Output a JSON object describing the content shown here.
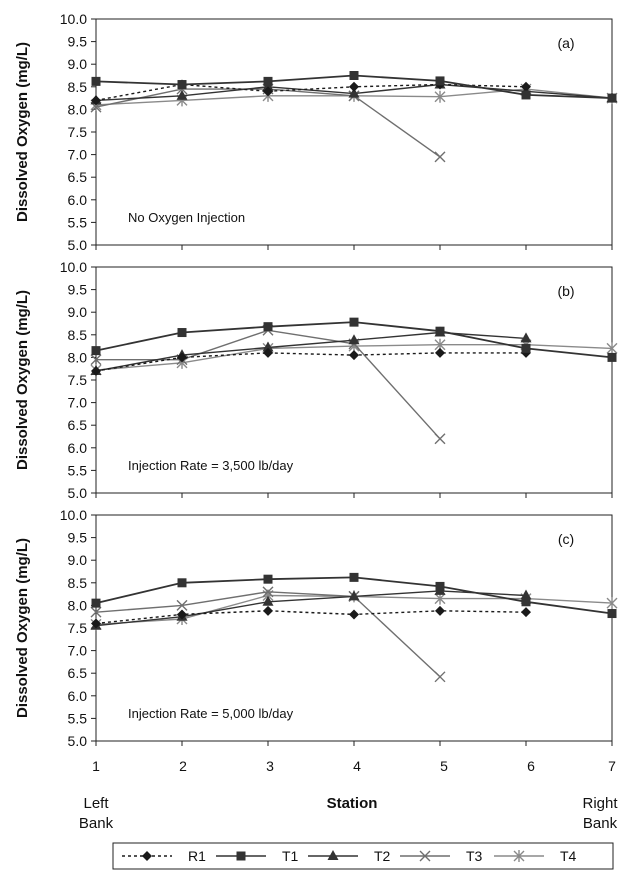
{
  "chart_data": [
    {
      "type": "line",
      "panel_label": "(a)",
      "annotation": "No Oxygen Injection",
      "ylabel": "Dissolved Oxygen (mg/L)",
      "xlabel": "",
      "x": [
        1,
        2,
        3,
        4,
        5,
        6,
        7
      ],
      "ylim": [
        5.0,
        10.0
      ],
      "yticks": [
        "5.0",
        "5.5",
        "6.0",
        "6.5",
        "7.0",
        "7.5",
        "8.0",
        "8.5",
        "9.0",
        "9.5",
        "10.0"
      ],
      "series": [
        {
          "name": "R1",
          "x": [
            1,
            2,
            3,
            4,
            5,
            6
          ],
          "values": [
            8.2,
            8.55,
            8.4,
            8.5,
            8.55,
            8.5
          ]
        },
        {
          "name": "T1",
          "x": [
            1,
            2,
            3,
            4,
            5,
            6,
            7
          ],
          "values": [
            8.62,
            8.55,
            8.62,
            8.75,
            8.63,
            8.32,
            8.25
          ]
        },
        {
          "name": "T2",
          "x": [
            1,
            2,
            3,
            4,
            5,
            6,
            7
          ],
          "values": [
            8.2,
            8.3,
            8.5,
            8.35,
            8.55,
            8.4,
            8.25
          ]
        },
        {
          "name": "T3",
          "x": [
            1,
            2,
            3,
            4,
            5
          ],
          "values": [
            8.05,
            8.45,
            8.45,
            8.3,
            6.95
          ]
        },
        {
          "name": "T4",
          "x": [
            1,
            2,
            3,
            4,
            5,
            6,
            7
          ],
          "values": [
            8.1,
            8.2,
            8.3,
            8.3,
            8.28,
            8.45,
            8.25
          ]
        }
      ]
    },
    {
      "type": "line",
      "panel_label": "(b)",
      "annotation": "Injection Rate = 3,500 lb/day",
      "ylabel": "Dissolved Oxygen (mg/L)",
      "xlabel": "",
      "x": [
        1,
        2,
        3,
        4,
        5,
        6,
        7
      ],
      "ylim": [
        5.0,
        10.0
      ],
      "yticks": [
        "5.0",
        "5.5",
        "6.0",
        "6.5",
        "7.0",
        "7.5",
        "8.0",
        "8.5",
        "9.0",
        "9.5",
        "10.0"
      ],
      "series": [
        {
          "name": "R1",
          "x": [
            1,
            2,
            3,
            4,
            5,
            6
          ],
          "values": [
            7.7,
            8.0,
            8.1,
            8.05,
            8.1,
            8.1
          ]
        },
        {
          "name": "T1",
          "x": [
            1,
            2,
            3,
            4,
            5,
            6,
            7
          ],
          "values": [
            8.15,
            8.55,
            8.68,
            8.78,
            8.58,
            8.2,
            8.0
          ]
        },
        {
          "name": "T2",
          "x": [
            1,
            2,
            3,
            4,
            5,
            6
          ],
          "values": [
            7.7,
            8.05,
            8.22,
            8.38,
            8.55,
            8.42
          ]
        },
        {
          "name": "T3",
          "x": [
            1,
            2,
            3,
            4,
            5
          ],
          "values": [
            7.95,
            7.95,
            8.6,
            8.3,
            6.2
          ]
        },
        {
          "name": "T4",
          "x": [
            1,
            2,
            3,
            4,
            5,
            6,
            7
          ],
          "values": [
            7.72,
            7.88,
            8.2,
            8.25,
            8.28,
            8.28,
            8.2
          ]
        }
      ]
    },
    {
      "type": "line",
      "panel_label": "(c)",
      "annotation": "Injection Rate = 5,000 lb/day",
      "ylabel": "Dissolved Oxygen (mg/L)",
      "xlabel": "",
      "x": [
        1,
        2,
        3,
        4,
        5,
        6,
        7
      ],
      "ylim": [
        5.0,
        10.0
      ],
      "yticks": [
        "5.0",
        "5.5",
        "6.0",
        "6.5",
        "7.0",
        "7.5",
        "8.0",
        "8.5",
        "9.0",
        "9.5",
        "10.0"
      ],
      "series": [
        {
          "name": "R1",
          "x": [
            1,
            2,
            3,
            4,
            5,
            6
          ],
          "values": [
            7.6,
            7.8,
            7.88,
            7.8,
            7.88,
            7.85
          ]
        },
        {
          "name": "T1",
          "x": [
            1,
            2,
            3,
            4,
            5,
            6,
            7
          ],
          "values": [
            8.05,
            8.5,
            8.58,
            8.62,
            8.42,
            8.08,
            7.82
          ]
        },
        {
          "name": "T2",
          "x": [
            1,
            2,
            3,
            4,
            5,
            6
          ],
          "values": [
            7.55,
            7.75,
            8.08,
            8.2,
            8.32,
            8.22
          ]
        },
        {
          "name": "T3",
          "x": [
            1,
            2,
            3,
            4,
            5
          ],
          "values": [
            7.85,
            8.0,
            8.3,
            8.2,
            6.42
          ]
        },
        {
          "name": "T4",
          "x": [
            1,
            2,
            3,
            4,
            5,
            6,
            7
          ],
          "values": [
            7.58,
            7.7,
            8.22,
            8.2,
            8.15,
            8.15,
            8.05
          ]
        }
      ]
    }
  ],
  "xaxis": {
    "tick_labels": [
      "1",
      "2",
      "3",
      "4",
      "5",
      "6",
      "7"
    ],
    "label": "Station",
    "left_end": [
      "Left",
      "Bank"
    ],
    "right_end": [
      "Right",
      "Bank"
    ]
  },
  "legend": [
    {
      "name": "R1",
      "marker": "diamond",
      "dash": true,
      "color": "#1a1a1a"
    },
    {
      "name": "T1",
      "marker": "square",
      "dash": false,
      "color": "#333333"
    },
    {
      "name": "T2",
      "marker": "triangle",
      "dash": false,
      "color": "#333333"
    },
    {
      "name": "T3",
      "marker": "x",
      "dash": false,
      "color": "#6f6f6f"
    },
    {
      "name": "T4",
      "marker": "star",
      "dash": false,
      "color": "#8a8a8a"
    }
  ]
}
